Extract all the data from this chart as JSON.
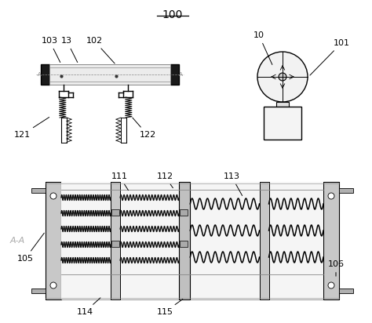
{
  "bg_color": "#ffffff",
  "lc": "#000000",
  "gc": "#888888",
  "lgc": "#cccccc",
  "dgc": "#333333",
  "title": "100",
  "aa_label": "A-A",
  "labels": [
    "103",
    "13",
    "102",
    "121",
    "122",
    "10",
    "101",
    "111",
    "112",
    "113",
    "105",
    "106",
    "114",
    "115"
  ]
}
